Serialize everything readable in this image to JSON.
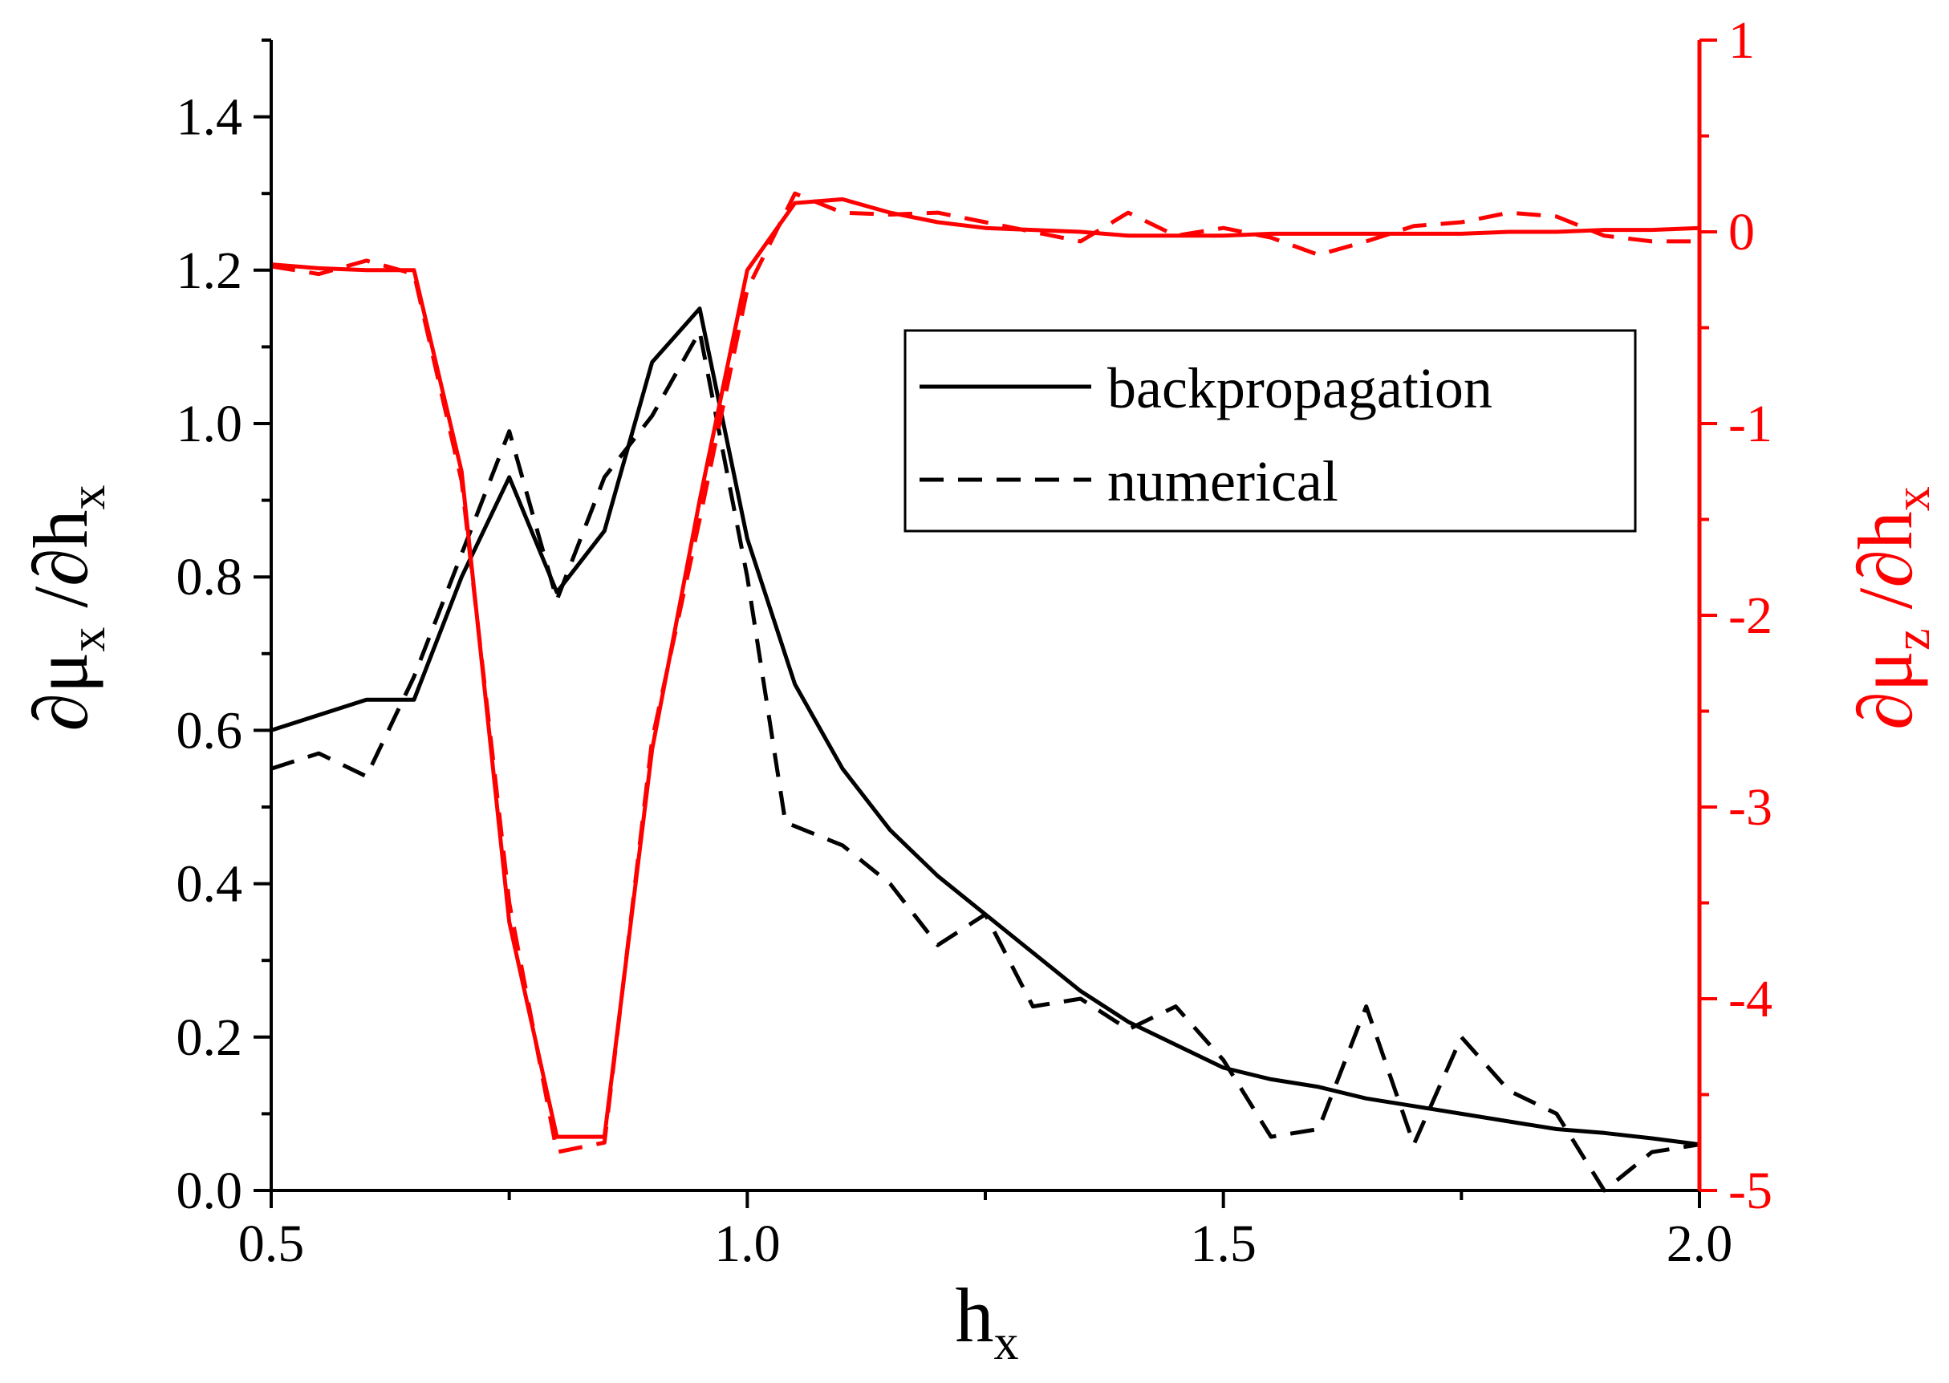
{
  "chart_data": {
    "type": "line",
    "title": "",
    "xlabel": {
      "main": "h",
      "sub": "x"
    },
    "ylabel_left": {
      "parts": [
        "∂μ",
        "x",
        " /∂h",
        "x"
      ]
    },
    "ylabel_right": {
      "parts": [
        "∂μ",
        "z",
        " /∂h",
        "x"
      ]
    },
    "xlim": [
      0.5,
      2.0
    ],
    "ylim_left": [
      0,
      1.5
    ],
    "ylim_right": [
      -5,
      1
    ],
    "xticks": [
      "0.5",
      "1.0",
      "1.5",
      "2.0"
    ],
    "yticks_left": [
      "0.0",
      "0.2",
      "0.4",
      "0.6",
      "0.8",
      "1.0",
      "1.2",
      "1.4"
    ],
    "yticks_right": [
      "-5",
      "-4",
      "-3",
      "-2",
      "-1",
      "0",
      "1"
    ],
    "grid": false,
    "legend": {
      "position": "upper-right",
      "entries": [
        {
          "label": "backpropagation",
          "style": "solid"
        },
        {
          "label": "numerical",
          "style": "dashed"
        }
      ]
    },
    "colors": {
      "left_axis": "#000000",
      "right_axis": "#ff0000"
    },
    "series": [
      {
        "name": "backpropagation",
        "axis": "left",
        "color": "#000000",
        "style": "solid",
        "x": [
          0.5,
          0.6,
          0.65,
          0.7,
          0.75,
          0.8,
          0.85,
          0.9,
          0.95,
          1.0,
          1.05,
          1.1,
          1.15,
          1.2,
          1.25,
          1.3,
          1.35,
          1.4,
          1.45,
          1.5,
          1.55,
          1.6,
          1.65,
          1.7,
          1.75,
          1.8,
          1.85,
          1.9,
          1.95,
          2.0
        ],
        "y": [
          0.6,
          0.64,
          0.64,
          0.8,
          0.93,
          0.78,
          0.86,
          1.08,
          1.15,
          0.85,
          0.66,
          0.55,
          0.47,
          0.41,
          0.36,
          0.31,
          0.26,
          0.22,
          0.19,
          0.16,
          0.145,
          0.135,
          0.12,
          0.11,
          0.1,
          0.09,
          0.08,
          0.075,
          0.068,
          0.06
        ]
      },
      {
        "name": "numerical",
        "axis": "left",
        "color": "#000000",
        "style": "dashed",
        "x": [
          0.5,
          0.55,
          0.6,
          0.65,
          0.7,
          0.75,
          0.8,
          0.85,
          0.9,
          0.95,
          1.0,
          1.04,
          1.1,
          1.15,
          1.2,
          1.25,
          1.3,
          1.35,
          1.4,
          1.45,
          1.5,
          1.55,
          1.6,
          1.65,
          1.7,
          1.75,
          1.8,
          1.85,
          1.9,
          1.95,
          2.0
        ],
        "y": [
          0.55,
          0.57,
          0.54,
          0.67,
          0.83,
          0.99,
          0.77,
          0.93,
          1.01,
          1.12,
          0.8,
          0.48,
          0.45,
          0.4,
          0.32,
          0.36,
          0.24,
          0.25,
          0.21,
          0.24,
          0.17,
          0.07,
          0.08,
          0.24,
          0.06,
          0.2,
          0.13,
          0.1,
          0.0,
          0.05,
          0.06
        ]
      },
      {
        "name": "backpropagation (∂μz/∂hx)",
        "axis": "right",
        "color": "#ff0000",
        "style": "solid",
        "x": [
          0.5,
          0.55,
          0.6,
          0.65,
          0.7,
          0.75,
          0.8,
          0.85,
          0.9,
          0.95,
          1.0,
          1.05,
          1.1,
          1.15,
          1.2,
          1.25,
          1.3,
          1.35,
          1.4,
          1.45,
          1.5,
          1.55,
          1.6,
          1.65,
          1.7,
          1.75,
          1.8,
          1.85,
          1.9,
          1.95,
          2.0
        ],
        "y": [
          -0.17,
          -0.19,
          -0.2,
          -0.2,
          -1.25,
          -3.6,
          -4.72,
          -4.72,
          -2.7,
          -1.4,
          -0.2,
          0.15,
          0.17,
          0.1,
          0.05,
          0.02,
          0.01,
          0.0,
          -0.02,
          -0.02,
          -0.02,
          -0.01,
          -0.01,
          -0.01,
          -0.01,
          -0.01,
          0.0,
          0.0,
          0.01,
          0.01,
          0.02
        ]
      },
      {
        "name": "numerical (∂μz/∂hx)",
        "axis": "right",
        "color": "#ff0000",
        "style": "dashed",
        "x": [
          0.5,
          0.55,
          0.6,
          0.65,
          0.7,
          0.75,
          0.8,
          0.85,
          0.9,
          0.95,
          1.0,
          1.05,
          1.1,
          1.15,
          1.2,
          1.25,
          1.3,
          1.35,
          1.4,
          1.45,
          1.5,
          1.55,
          1.6,
          1.65,
          1.7,
          1.75,
          1.8,
          1.85,
          1.9,
          1.95,
          2.0
        ],
        "y": [
          -0.18,
          -0.22,
          -0.15,
          -0.22,
          -1.3,
          -3.5,
          -4.8,
          -4.75,
          -2.65,
          -1.5,
          -0.3,
          0.2,
          0.1,
          0.09,
          0.1,
          0.05,
          0.0,
          -0.05,
          0.1,
          -0.02,
          0.02,
          -0.03,
          -0.12,
          -0.05,
          0.03,
          0.05,
          0.1,
          0.08,
          -0.02,
          -0.05,
          -0.05
        ]
      }
    ]
  }
}
